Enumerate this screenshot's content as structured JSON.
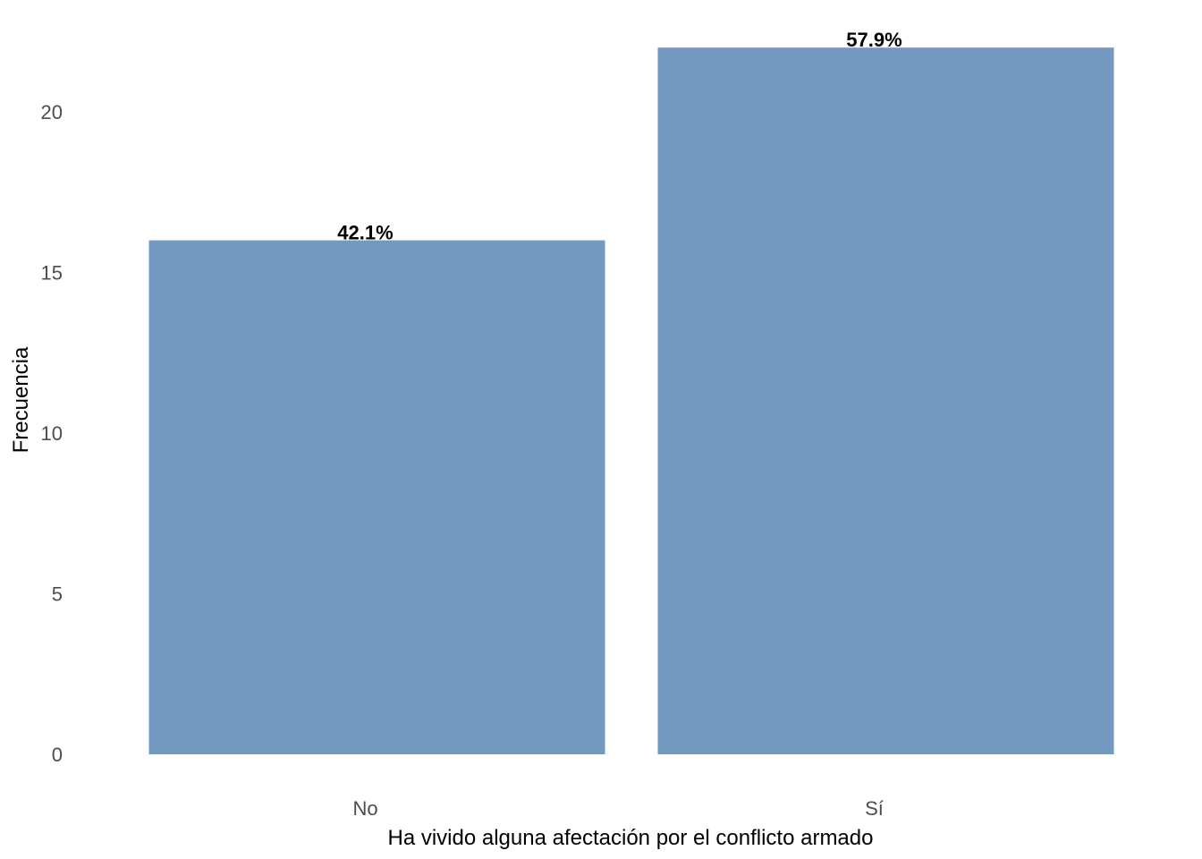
{
  "chart_data": {
    "type": "bar",
    "categories": [
      "No",
      "Sí"
    ],
    "values": [
      16,
      22
    ],
    "data_labels": [
      "42.1%",
      "57.9%"
    ],
    "title": "",
    "xlabel": "Ha vivido alguna afectación por el conflicto armado",
    "ylabel": "Frecuencia",
    "ylim": [
      0,
      22
    ],
    "yticks": [
      0,
      5,
      10,
      15,
      20
    ],
    "grid": false,
    "legend": "none",
    "bar_color": "#7399C1",
    "text_color": "#000000",
    "tick_color": "#4D4D4D"
  }
}
